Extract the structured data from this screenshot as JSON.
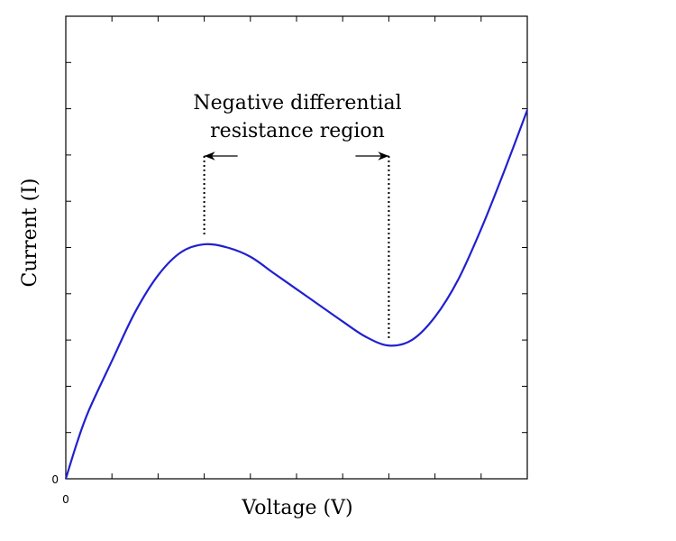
{
  "chart_data": {
    "type": "line",
    "xlabel": "Voltage (V)",
    "ylabel": "Current (I)",
    "annotation": [
      "Negative differential",
      "resistance region"
    ],
    "x": [
      0,
      0.25,
      0.5,
      1,
      1.5,
      2,
      2.5,
      3,
      3.5,
      4,
      4.5,
      5,
      5.5,
      6,
      6.5,
      7,
      7.5,
      8,
      8.5,
      9,
      9.5,
      10
    ],
    "series": [
      {
        "color": "#2020d0",
        "values": [
          0,
          0.8,
          1.48,
          2.55,
          3.6,
          4.4,
          4.9,
          5.07,
          5.0,
          4.8,
          4.45,
          4.1,
          3.75,
          3.4,
          3.07,
          2.88,
          3.0,
          3.5,
          4.3,
          5.4,
          6.65,
          7.97
        ]
      }
    ],
    "xlim": [
      0,
      10
    ],
    "ylim": [
      0,
      10
    ],
    "xticks": [
      0
    ],
    "yticks": [
      0
    ],
    "x_tick_marks": [
      1,
      2,
      3,
      4,
      5,
      6,
      7,
      8,
      9
    ],
    "y_tick_marks": [
      1,
      2,
      3,
      4,
      5,
      6,
      7,
      8,
      9
    ]
  }
}
